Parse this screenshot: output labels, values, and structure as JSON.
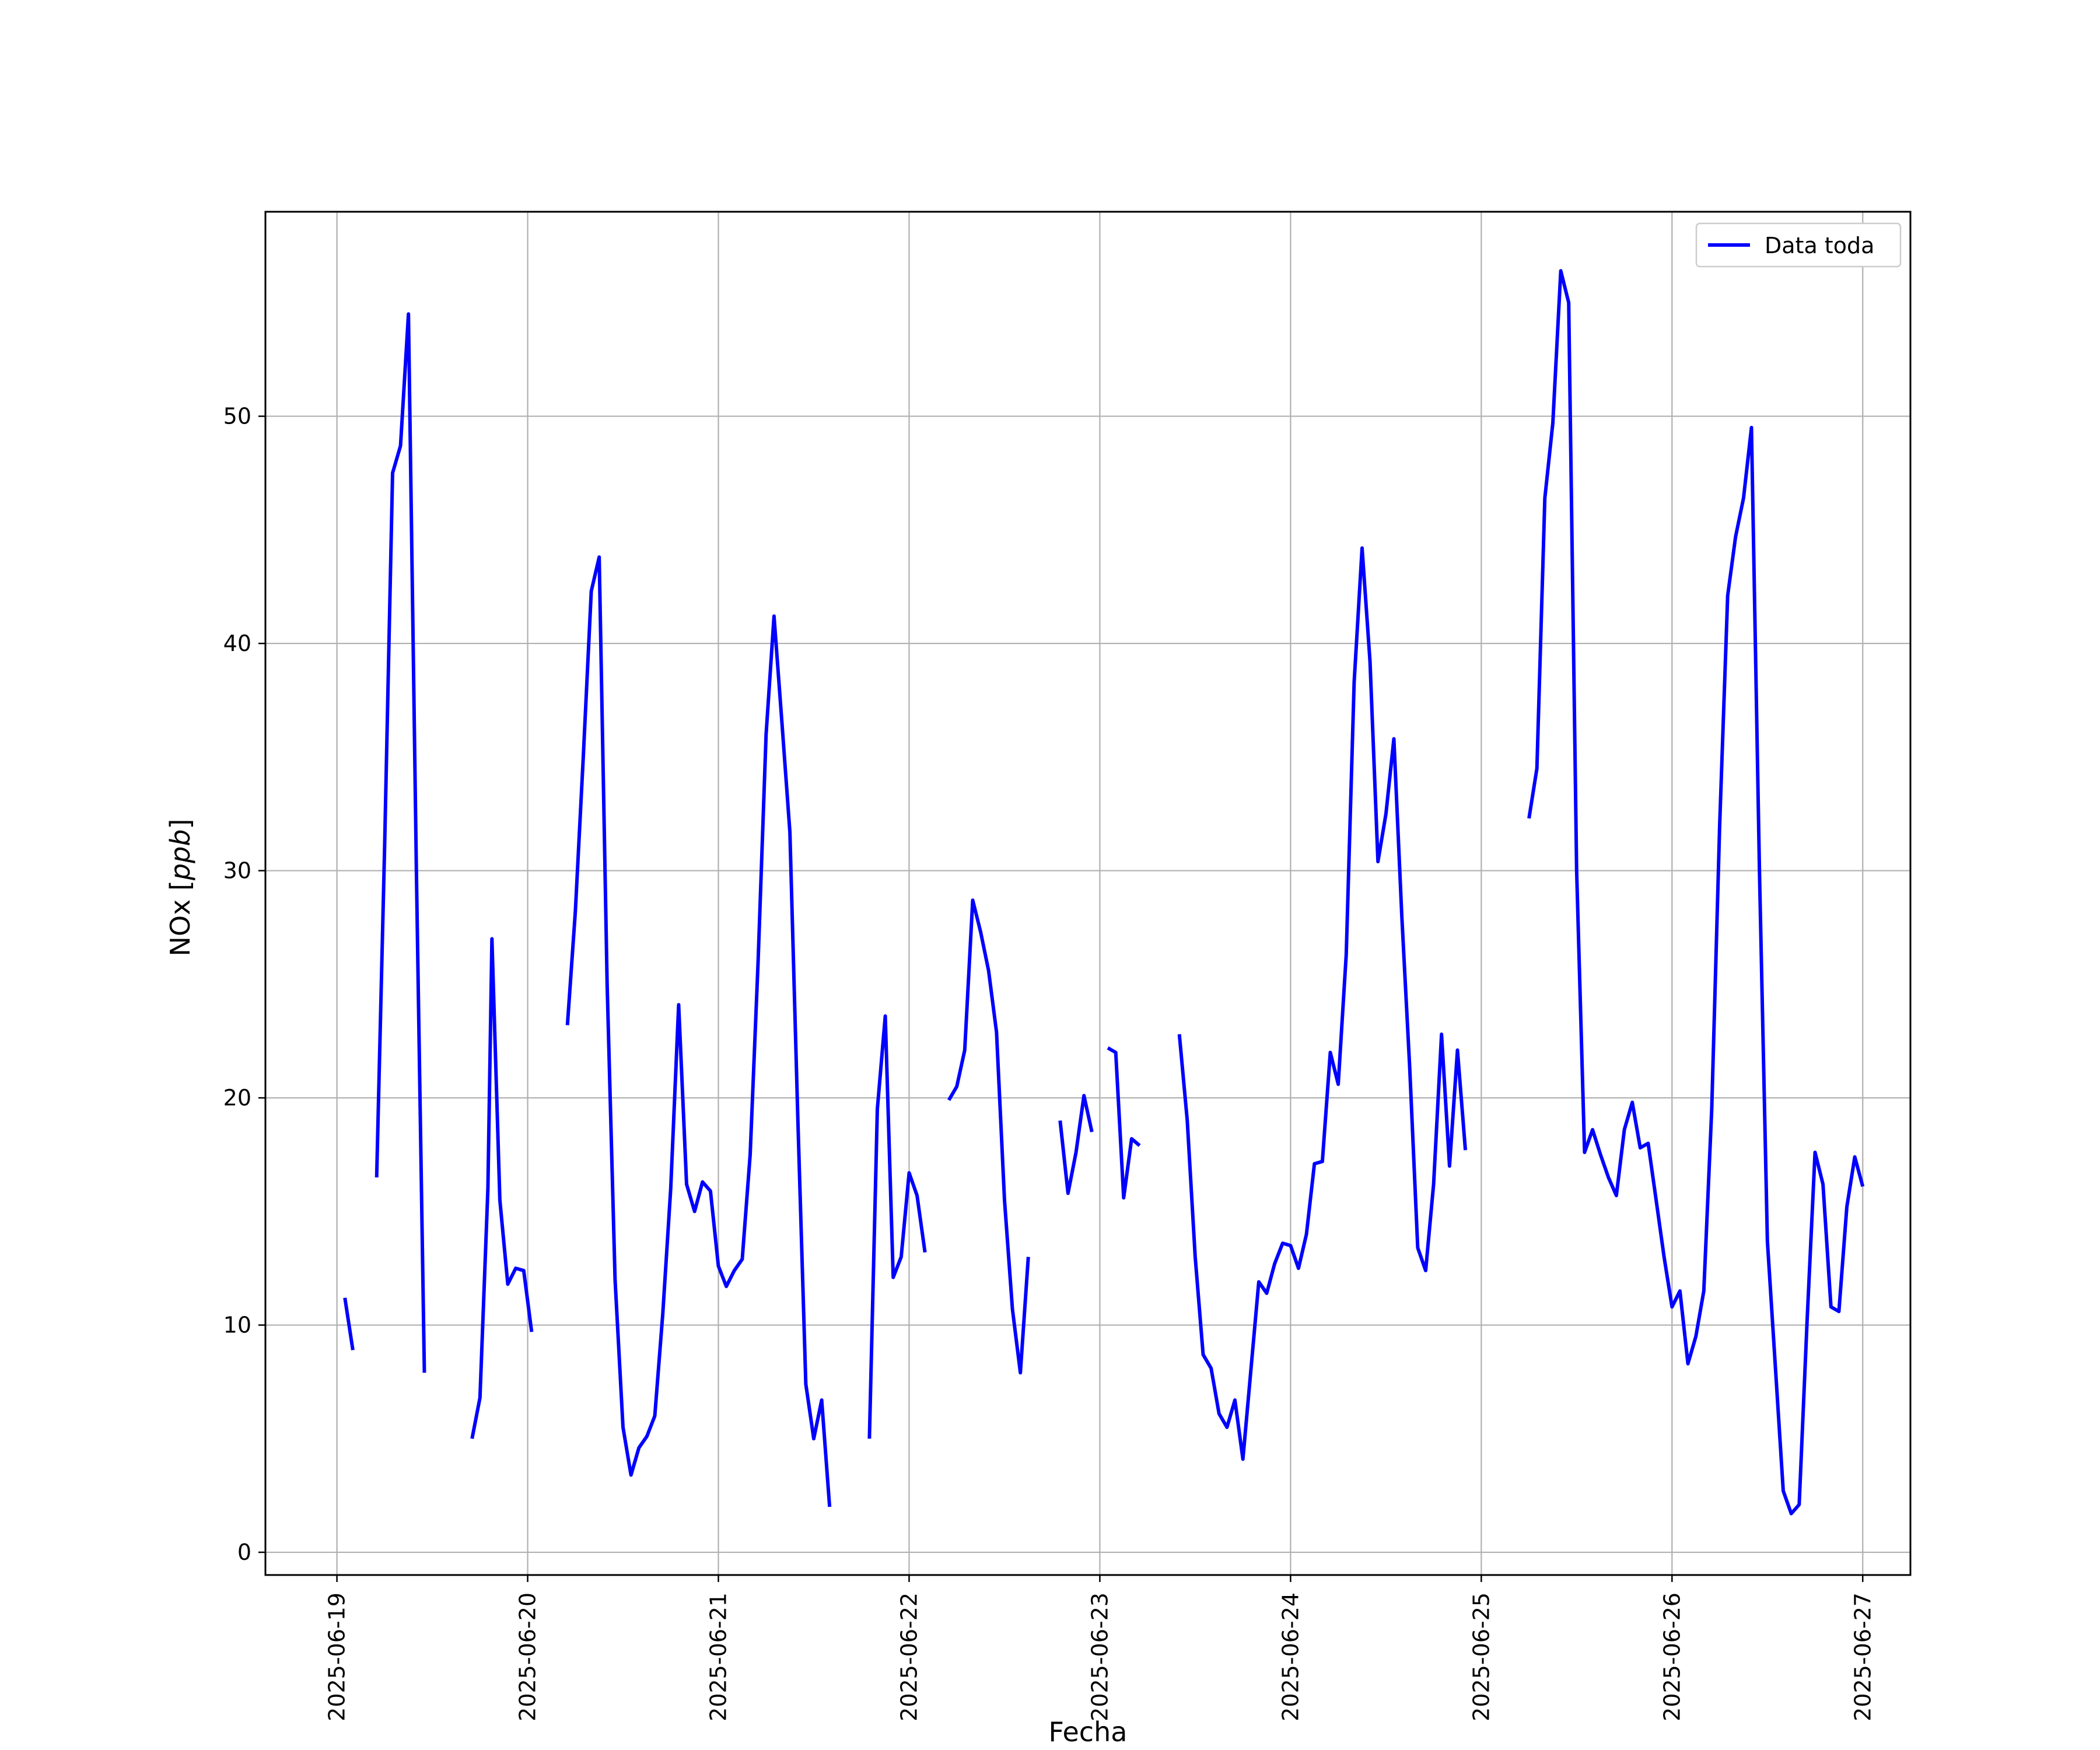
{
  "chart_data": {
    "type": "line",
    "title": "",
    "xlabel": "Fecha",
    "ylabel_text": "NOx [",
    "ylabel_unit": "ppb",
    "ylabel_close": "]",
    "xlim": [
      "2025-06-18 15:00",
      "2025-06-27 06:00"
    ],
    "ylim": [
      -1,
      59
    ],
    "x_ticks": [
      "2025-06-19",
      "2025-06-20",
      "2025-06-21",
      "2025-06-22",
      "2025-06-23",
      "2025-06-24",
      "2025-06-25",
      "2025-06-26",
      "2025-06-27"
    ],
    "y_ticks": [
      0,
      10,
      20,
      30,
      40,
      50
    ],
    "grid": true,
    "legend": {
      "placement": "top-right",
      "entries": [
        "Data toda"
      ]
    },
    "colors": {
      "series": "#0000ff",
      "grid": "#b0b0b0",
      "frame": "#000000"
    },
    "series": [
      {
        "name": "Data toda",
        "segments": [
          [
            [
              "2025-06-19 01:00",
              11.2
            ],
            [
              "2025-06-19 02:00",
              8.9
            ]
          ],
          [
            [
              "2025-06-19 05:00",
              16.5
            ],
            [
              "2025-06-19 06:00",
              31.0
            ],
            [
              "2025-06-19 07:00",
              47.5
            ],
            [
              "2025-06-19 08:00",
              48.7
            ],
            [
              "2025-06-19 09:00",
              54.5
            ],
            [
              "2025-06-19 10:00",
              30.0
            ],
            [
              "2025-06-19 11:00",
              7.9
            ]
          ],
          [
            [
              "2025-06-19 17:00",
              5.0
            ],
            [
              "2025-06-19 18:00",
              6.8
            ],
            [
              "2025-06-19 19:00",
              16.0
            ],
            [
              "2025-06-19 19:30",
              27.0
            ],
            [
              "2025-06-19 20:30",
              15.5
            ],
            [
              "2025-06-19 21:30",
              11.8
            ],
            [
              "2025-06-19 22:30",
              12.5
            ],
            [
              "2025-06-19 23:30",
              12.4
            ],
            [
              "2025-06-20 00:30",
              9.7
            ]
          ],
          [
            [
              "2025-06-20 05:00",
              23.2
            ],
            [
              "2025-06-20 06:00",
              28.2
            ],
            [
              "2025-06-20 07:00",
              35.0
            ],
            [
              "2025-06-20 08:00",
              42.3
            ],
            [
              "2025-06-20 09:00",
              43.8
            ],
            [
              "2025-06-20 10:00",
              25.0
            ],
            [
              "2025-06-20 11:00",
              12.0
            ],
            [
              "2025-06-20 12:00",
              5.5
            ],
            [
              "2025-06-20 13:00",
              3.4
            ],
            [
              "2025-06-20 14:00",
              4.6
            ],
            [
              "2025-06-20 15:00",
              5.1
            ],
            [
              "2025-06-20 16:00",
              6.0
            ],
            [
              "2025-06-20 17:00",
              10.5
            ],
            [
              "2025-06-20 18:00",
              16.0
            ],
            [
              "2025-06-20 19:00",
              24.1
            ],
            [
              "2025-06-20 20:00",
              16.2
            ],
            [
              "2025-06-20 21:00",
              15.0
            ],
            [
              "2025-06-20 22:00",
              16.3
            ],
            [
              "2025-06-20 23:00",
              15.9
            ],
            [
              "2025-06-21 00:00",
              12.6
            ],
            [
              "2025-06-21 01:00",
              11.7
            ],
            [
              "2025-06-21 02:00",
              12.4
            ],
            [
              "2025-06-21 03:00",
              12.9
            ],
            [
              "2025-06-21 04:00",
              17.5
            ],
            [
              "2025-06-21 05:00",
              26.0
            ],
            [
              "2025-06-21 06:00",
              36.0
            ],
            [
              "2025-06-21 07:00",
              41.2
            ],
            [
              "2025-06-21 08:00",
              36.5
            ],
            [
              "2025-06-21 09:00",
              31.7
            ],
            [
              "2025-06-21 10:00",
              19.0
            ],
            [
              "2025-06-21 11:00",
              7.4
            ],
            [
              "2025-06-21 12:00",
              5.0
            ],
            [
              "2025-06-21 13:00",
              6.7
            ],
            [
              "2025-06-21 14:00",
              2.0
            ]
          ],
          [
            [
              "2025-06-21 19:00",
              5.0
            ],
            [
              "2025-06-21 20:00",
              19.5
            ],
            [
              "2025-06-21 21:00",
              23.6
            ],
            [
              "2025-06-21 22:00",
              12.1
            ],
            [
              "2025-06-21 23:00",
              13.0
            ],
            [
              "2025-06-22 00:00",
              16.7
            ],
            [
              "2025-06-22 01:00",
              15.7
            ],
            [
              "2025-06-22 02:00",
              13.2
            ]
          ],
          [
            [
              "2025-06-22 05:00",
              19.9
            ],
            [
              "2025-06-22 06:00",
              20.5
            ],
            [
              "2025-06-22 07:00",
              22.1
            ],
            [
              "2025-06-22 08:00",
              28.7
            ],
            [
              "2025-06-22 09:00",
              27.3
            ],
            [
              "2025-06-22 10:00",
              25.6
            ],
            [
              "2025-06-22 11:00",
              22.9
            ],
            [
              "2025-06-22 12:00",
              15.5
            ],
            [
              "2025-06-22 13:00",
              10.7
            ],
            [
              "2025-06-22 14:00",
              7.9
            ],
            [
              "2025-06-22 15:00",
              13.0
            ]
          ],
          [
            [
              "2025-06-22 19:00",
              19.0
            ],
            [
              "2025-06-22 20:00",
              15.8
            ],
            [
              "2025-06-22 21:00",
              17.6
            ],
            [
              "2025-06-22 22:00",
              20.1
            ],
            [
              "2025-06-22 23:00",
              18.5
            ]
          ],
          [
            [
              "2025-06-23 01:00",
              22.2
            ],
            [
              "2025-06-23 02:00",
              22.0
            ],
            [
              "2025-06-23 03:00",
              15.6
            ],
            [
              "2025-06-23 04:00",
              18.2
            ],
            [
              "2025-06-23 05:00",
              17.9
            ]
          ],
          [
            [
              "2025-06-23 10:00",
              22.8
            ],
            [
              "2025-06-23 11:00",
              19.0
            ],
            [
              "2025-06-23 12:00",
              13.0
            ],
            [
              "2025-06-23 13:00",
              8.7
            ],
            [
              "2025-06-23 14:00",
              8.1
            ],
            [
              "2025-06-23 15:00",
              6.1
            ],
            [
              "2025-06-23 16:00",
              5.5
            ],
            [
              "2025-06-23 17:00",
              6.7
            ],
            [
              "2025-06-23 18:00",
              4.1
            ],
            [
              "2025-06-23 19:00",
              8.0
            ],
            [
              "2025-06-23 20:00",
              11.9
            ],
            [
              "2025-06-23 21:00",
              11.4
            ],
            [
              "2025-06-23 22:00",
              12.7
            ],
            [
              "2025-06-23 23:00",
              13.6
            ],
            [
              "2025-06-24 00:00",
              13.5
            ],
            [
              "2025-06-24 01:00",
              12.5
            ],
            [
              "2025-06-24 02:00",
              14.0
            ],
            [
              "2025-06-24 03:00",
              17.1
            ],
            [
              "2025-06-24 04:00",
              17.2
            ],
            [
              "2025-06-24 05:00",
              22.0
            ],
            [
              "2025-06-24 06:00",
              20.6
            ],
            [
              "2025-06-24 07:00",
              26.3
            ],
            [
              "2025-06-24 08:00",
              38.3
            ],
            [
              "2025-06-24 09:00",
              44.2
            ],
            [
              "2025-06-24 10:00",
              39.2
            ],
            [
              "2025-06-24 11:00",
              30.4
            ],
            [
              "2025-06-24 12:00",
              32.5
            ],
            [
              "2025-06-24 13:00",
              35.8
            ],
            [
              "2025-06-24 14:00",
              28.0
            ],
            [
              "2025-06-24 15:00",
              21.3
            ],
            [
              "2025-06-24 16:00",
              13.4
            ],
            [
              "2025-06-24 17:00",
              12.4
            ],
            [
              "2025-06-24 18:00",
              16.2
            ],
            [
              "2025-06-24 19:00",
              22.8
            ],
            [
              "2025-06-24 20:00",
              17.0
            ],
            [
              "2025-06-24 21:00",
              22.1
            ],
            [
              "2025-06-24 22:00",
              17.7
            ]
          ],
          [
            [
              "2025-06-25 06:00",
              32.3
            ],
            [
              "2025-06-25 07:00",
              34.5
            ],
            [
              "2025-06-25 08:00",
              46.4
            ],
            [
              "2025-06-25 09:00",
              49.7
            ],
            [
              "2025-06-25 10:00",
              56.4
            ],
            [
              "2025-06-25 11:00",
              55.0
            ],
            [
              "2025-06-25 12:00",
              30.0
            ],
            [
              "2025-06-25 13:00",
              17.6
            ],
            [
              "2025-06-25 14:00",
              18.6
            ],
            [
              "2025-06-25 15:00",
              17.5
            ],
            [
              "2025-06-25 16:00",
              16.5
            ],
            [
              "2025-06-25 17:00",
              15.7
            ],
            [
              "2025-06-25 18:00",
              18.6
            ],
            [
              "2025-06-25 19:00",
              19.8
            ],
            [
              "2025-06-25 20:00",
              17.8
            ],
            [
              "2025-06-25 21:00",
              18.0
            ],
            [
              "2025-06-25 22:00",
              15.5
            ],
            [
              "2025-06-25 23:00",
              13.0
            ],
            [
              "2025-06-26 00:00",
              10.8
            ],
            [
              "2025-06-26 01:00",
              11.5
            ],
            [
              "2025-06-26 02:00",
              8.3
            ],
            [
              "2025-06-26 03:00",
              9.5
            ],
            [
              "2025-06-26 04:00",
              11.5
            ],
            [
              "2025-06-26 05:00",
              19.5
            ],
            [
              "2025-06-26 06:00",
              32.0
            ],
            [
              "2025-06-26 07:00",
              42.1
            ],
            [
              "2025-06-26 08:00",
              44.7
            ],
            [
              "2025-06-26 09:00",
              46.4
            ],
            [
              "2025-06-26 10:00",
              49.5
            ],
            [
              "2025-06-26 11:00",
              30.0
            ],
            [
              "2025-06-26 12:00",
              13.7
            ],
            [
              "2025-06-26 13:00",
              8.2
            ],
            [
              "2025-06-26 14:00",
              2.7
            ],
            [
              "2025-06-26 15:00",
              1.7
            ],
            [
              "2025-06-26 16:00",
              2.1
            ],
            [
              "2025-06-26 17:00",
              10.2
            ],
            [
              "2025-06-26 18:00",
              17.6
            ],
            [
              "2025-06-26 19:00",
              16.2
            ],
            [
              "2025-06-26 20:00",
              10.8
            ],
            [
              "2025-06-26 21:00",
              10.6
            ],
            [
              "2025-06-26 22:00",
              15.2
            ],
            [
              "2025-06-26 23:00",
              17.4
            ],
            [
              "2025-06-27 00:00",
              16.1
            ]
          ]
        ]
      }
    ]
  }
}
